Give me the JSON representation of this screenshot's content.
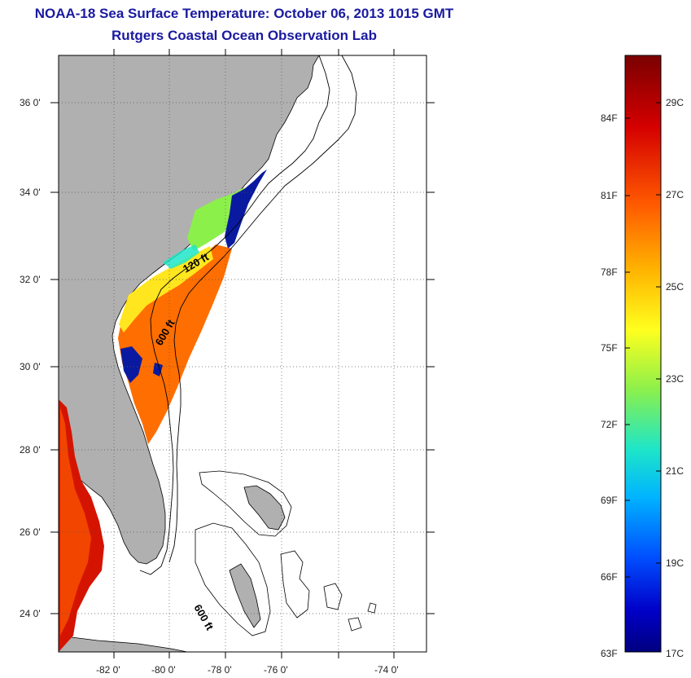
{
  "title": "NOAA-18 Sea Surface Temperature:  October 06, 2013 1015 GMT",
  "subtitle": "Rutgers Coastal Ocean Observation Lab",
  "map": {
    "lat_labels": [
      "36 0'",
      "34 0'",
      "32 0'",
      "30 0'",
      "28 0'",
      "26 0'",
      "24 0'"
    ],
    "lon_labels": [
      "-82 0'",
      "-80 0'",
      "-78 0'",
      "-76 0'",
      "-74 0'"
    ],
    "depth_labels": [
      "120 ft",
      "600 ft",
      "600 ft"
    ],
    "colors": {
      "land": "#b0b0b0",
      "ocean": "#ffffff",
      "coastline": "#000000"
    }
  },
  "colorbar": {
    "fahrenheit_labels": [
      "84F",
      "81F",
      "78F",
      "75F",
      "72F",
      "69F",
      "66F",
      "63F"
    ],
    "celsius_labels": [
      "29C",
      "27C",
      "25C",
      "23C",
      "21C",
      "19C",
      "17C"
    ],
    "colors": [
      "#7a0000",
      "#d40000",
      "#ff5a00",
      "#ffb400",
      "#ffff1e",
      "#8cf04b",
      "#1ee6c8",
      "#00b4ff",
      "#0050ff",
      "#0000c8",
      "#000080"
    ]
  }
}
